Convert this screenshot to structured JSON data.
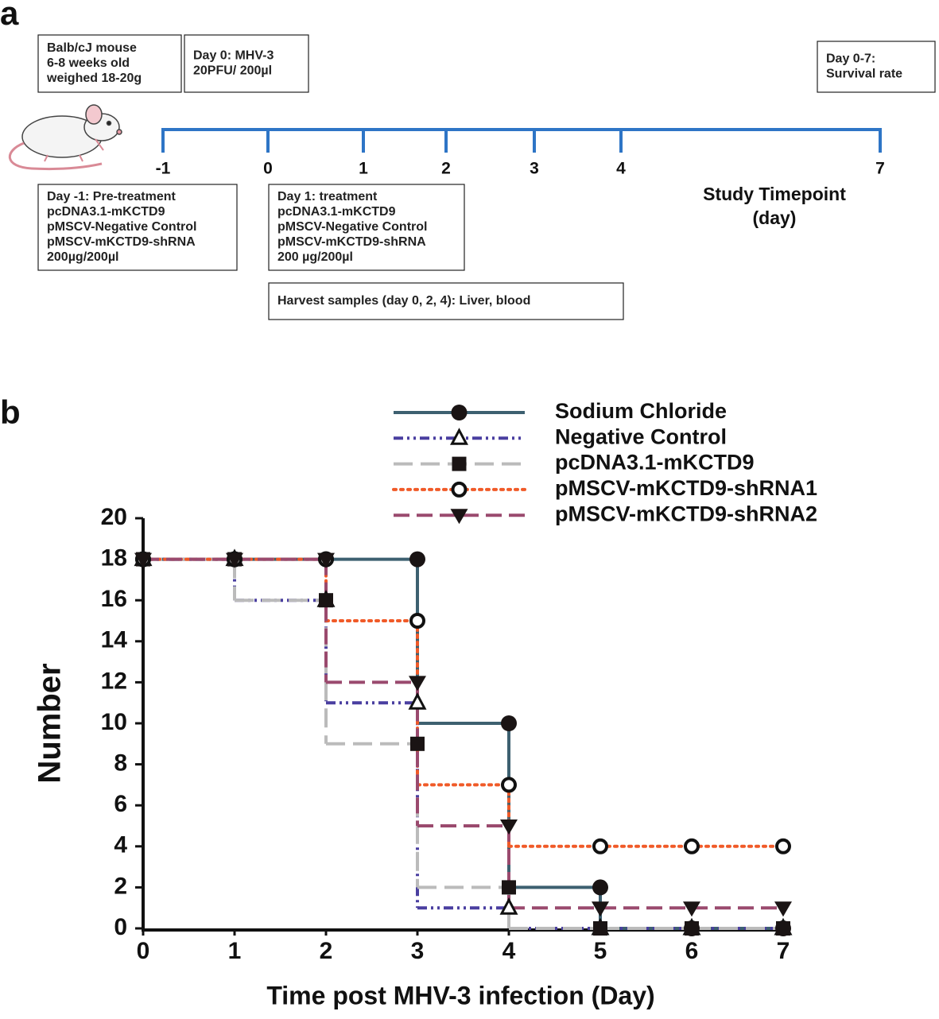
{
  "panel_a": {
    "label": "a",
    "boxes": [
      {
        "lines": [
          "Balb/cJ mouse",
          "6-8 weeks old",
          "weighed 18-20g"
        ]
      },
      {
        "lines": [
          "Day 0: MHV-3",
          "20PFU/ 200µl"
        ]
      },
      {
        "lines": [
          "Day 0-7:",
          "Survival rate"
        ]
      },
      {
        "lines": [
          "Day -1: Pre-treatment",
          "pcDNA3.1-mKCTD9",
          "pMSCV-Negative Control",
          "pMSCV-mKCTD9-shRNA",
          "200µg/200µl"
        ]
      },
      {
        "lines": [
          "Day 1: treatment",
          "pcDNA3.1-mKCTD9",
          "pMSCV-Negative Control",
          "pMSCV-mKCTD9-shRNA",
          "200 µg/200µl"
        ]
      },
      {
        "lines": [
          "Harvest samples (day 0, 2, 4): Liver, blood"
        ]
      }
    ],
    "timeline": {
      "ticks": [
        -1,
        0,
        1,
        2,
        3,
        4,
        7
      ],
      "color": "#2e75c6",
      "label": [
        "Study Timepoint",
        "(day)"
      ]
    }
  },
  "chart_data": {
    "panel_label": "b",
    "type": "step",
    "xlabel": "Time post MHV-3 infection (Day)",
    "ylabel": "Number",
    "x": [
      0,
      1,
      2,
      3,
      4,
      5,
      6,
      7
    ],
    "xlim": [
      0,
      7
    ],
    "xticks": [
      0,
      1,
      2,
      3,
      4,
      5,
      6,
      7
    ],
    "ylim": [
      0,
      20
    ],
    "yticks": [
      0,
      2,
      4,
      6,
      8,
      10,
      12,
      14,
      16,
      18,
      20
    ],
    "legend": "top-right",
    "series": [
      {
        "name": "Sodium Chloride",
        "color": "#3d6070",
        "marker": "circle",
        "line": "solid",
        "values": [
          18,
          18,
          18,
          18,
          10,
          2,
          0,
          0
        ]
      },
      {
        "name": "Negative Control",
        "color": "#4a3fa0",
        "marker": "triangle-open",
        "line": "dash-dot-dot",
        "values": [
          18,
          18,
          16,
          11,
          1,
          0,
          0,
          0
        ]
      },
      {
        "name": "pcDNA3.1-mKCTD9",
        "color": "#bbbbbb",
        "marker": "square",
        "line": "long-dash",
        "values": [
          18,
          18,
          16,
          9,
          2,
          0,
          0,
          0
        ]
      },
      {
        "name": "pMSCV-mKCTD9-shRNA1",
        "color": "#f05a28",
        "marker": "circle-open",
        "line": "dotted",
        "values": [
          18,
          18,
          18,
          15,
          7,
          4,
          4,
          4
        ]
      },
      {
        "name": "pMSCV-mKCTD9-shRNA2",
        "color": "#9a4a6e",
        "marker": "triangle-down",
        "line": "dashed",
        "values": [
          18,
          18,
          18,
          12,
          5,
          1,
          1,
          1
        ]
      }
    ]
  }
}
